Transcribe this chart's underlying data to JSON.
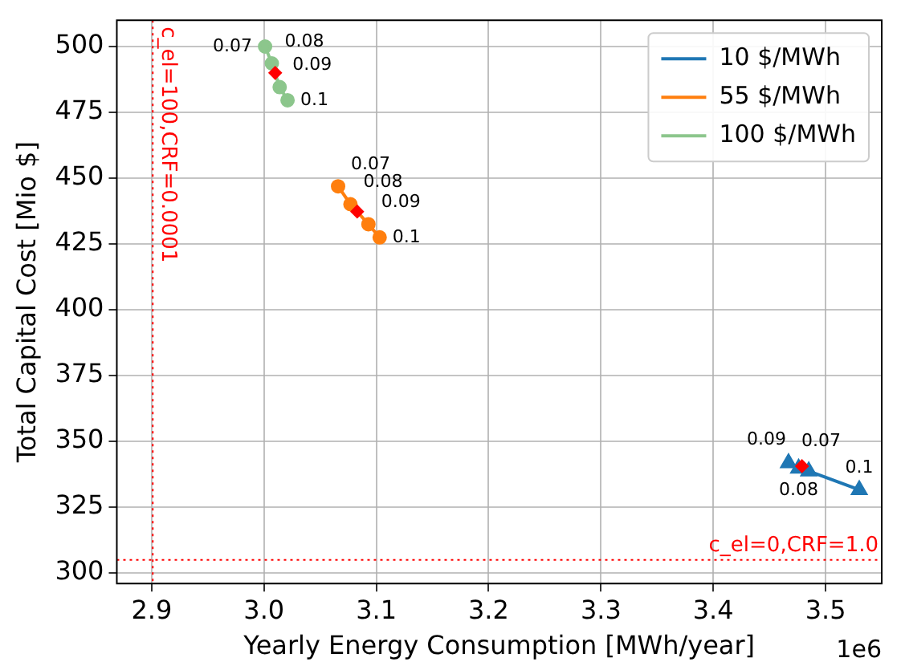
{
  "chart_data": {
    "type": "line",
    "xlabel": "Yearly Energy Consumption [MWh/year]",
    "ylabel": "Total Capital Cost [Mio $]",
    "xlim": [
      2.869,
      3.55
    ],
    "ylim": [
      296,
      510
    ],
    "xticks": [
      2.9,
      {
        "value": 3.0,
        "label": "3.0"
      },
      3.1,
      3.2,
      3.3,
      3.4,
      3.5
    ],
    "yticks": [
      300,
      325,
      350,
      375,
      400,
      425,
      450,
      475,
      500
    ],
    "series": [
      {
        "name": "10 $/MWh",
        "color": "#1f77b4",
        "marker": "triangle",
        "x": [
          3.467,
          3.476,
          3.485,
          3.53
        ],
        "values": [
          341.8,
          339.7,
          338.7,
          331.6
        ]
      },
      {
        "name": "55 $/MWh",
        "color": "#ff7f0e",
        "marker": "circle",
        "x": [
          3.066,
          3.077,
          3.093,
          3.103
        ],
        "values": [
          446.9,
          440.1,
          432.5,
          427.5
        ]
      },
      {
        "name": "100 $/MWh",
        "color": "#8cc68c",
        "marker": "circle",
        "x": [
          3.001,
          3.007,
          3.014,
          3.021
        ],
        "values": [
          500,
          493.6,
          484.6,
          479.6
        ]
      },
      {
        "type": "scatter",
        "color": "#ff0000",
        "marker": "diamond",
        "x": [
          3.479,
          3.083,
          3.01
        ],
        "values": [
          340.6,
          437.3,
          490
        ]
      }
    ],
    "ref_lines": [
      {
        "axis": "x",
        "value": 2.901,
        "color": "#ff0000",
        "line_style": "dotted"
      },
      {
        "axis": "y",
        "value": 305,
        "color": "#ff0000",
        "line_style": "dotted"
      }
    ],
    "annotations": [
      "1e6",
      {
        "text": "c_el=100,CRF=0.0001",
        "x": 2.901
      },
      {
        "text": "c_el=0,CRF=1.0",
        "y": 305
      },
      {
        "text": "0.07",
        "x": 3.467,
        "y": 341.8
      },
      {
        "text": "0.08",
        "x": 3.476,
        "y": 339.7
      },
      {
        "text": "0.09",
        "x": 3.485,
        "y": 338.7
      },
      {
        "text": "0.1",
        "x": 3.53,
        "y": 331.6
      },
      {
        "text": "0.07",
        "x": 3.066,
        "y": 446.9
      },
      {
        "text": "0.08",
        "x": 3.077,
        "y": 440.1
      },
      {
        "text": "0.09",
        "x": 3.093,
        "y": 432.5
      },
      {
        "text": "0.1",
        "x": 3.103,
        "y": 427.5
      },
      {
        "text": "0.07",
        "x": 3.001,
        "y": 500
      },
      {
        "text": "0.08",
        "x": 3.007,
        "y": 493.6
      },
      {
        "text": "0.09",
        "x": 3.014,
        "y": 484.6
      },
      {
        "text": "0.1",
        "x": 3.021,
        "y": 479.6
      }
    ],
    "grid": true,
    "legend": "top right",
    "line_style": "solid"
  }
}
